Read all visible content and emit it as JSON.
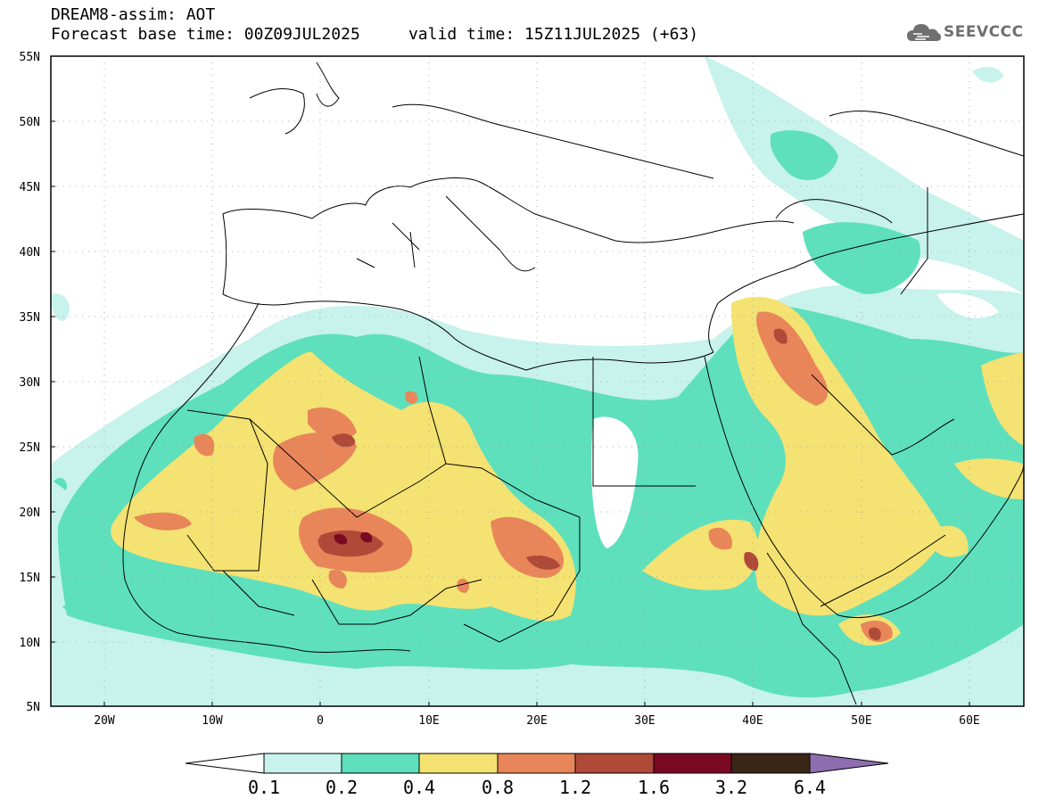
{
  "title": {
    "line1": "DREAM8-assim: AOT",
    "line2": "Forecast base time: 00Z09JUL2025     valid time: 15Z11JUL2025 (+63)"
  },
  "logo": {
    "text": "SEEVCCC",
    "icon": "cloud-icon",
    "color": "#6f6f6f"
  },
  "map": {
    "lon_range": [
      -25,
      65
    ],
    "lat_range": [
      5,
      55
    ],
    "lat_labels": [
      "55N",
      "50N",
      "45N",
      "40N",
      "35N",
      "30N",
      "25N",
      "20N",
      "15N",
      "10N",
      "5N"
    ],
    "lon_labels": [
      "20W",
      "10W",
      "0",
      "10E",
      "20E",
      "30E",
      "40E",
      "50E",
      "60E"
    ],
    "grid": "dotted"
  },
  "legend": {
    "colors": [
      "#ffffff",
      "#c8f2ec",
      "#5ee0bd",
      "#f4e272",
      "#e8865a",
      "#b04a38",
      "#7a0a22",
      "#3a2616",
      "#8e6db0"
    ],
    "labels": [
      "0.1",
      "0.2",
      "0.4",
      "0.8",
      "1.2",
      "1.6",
      "3.2",
      "6.4"
    ]
  }
}
